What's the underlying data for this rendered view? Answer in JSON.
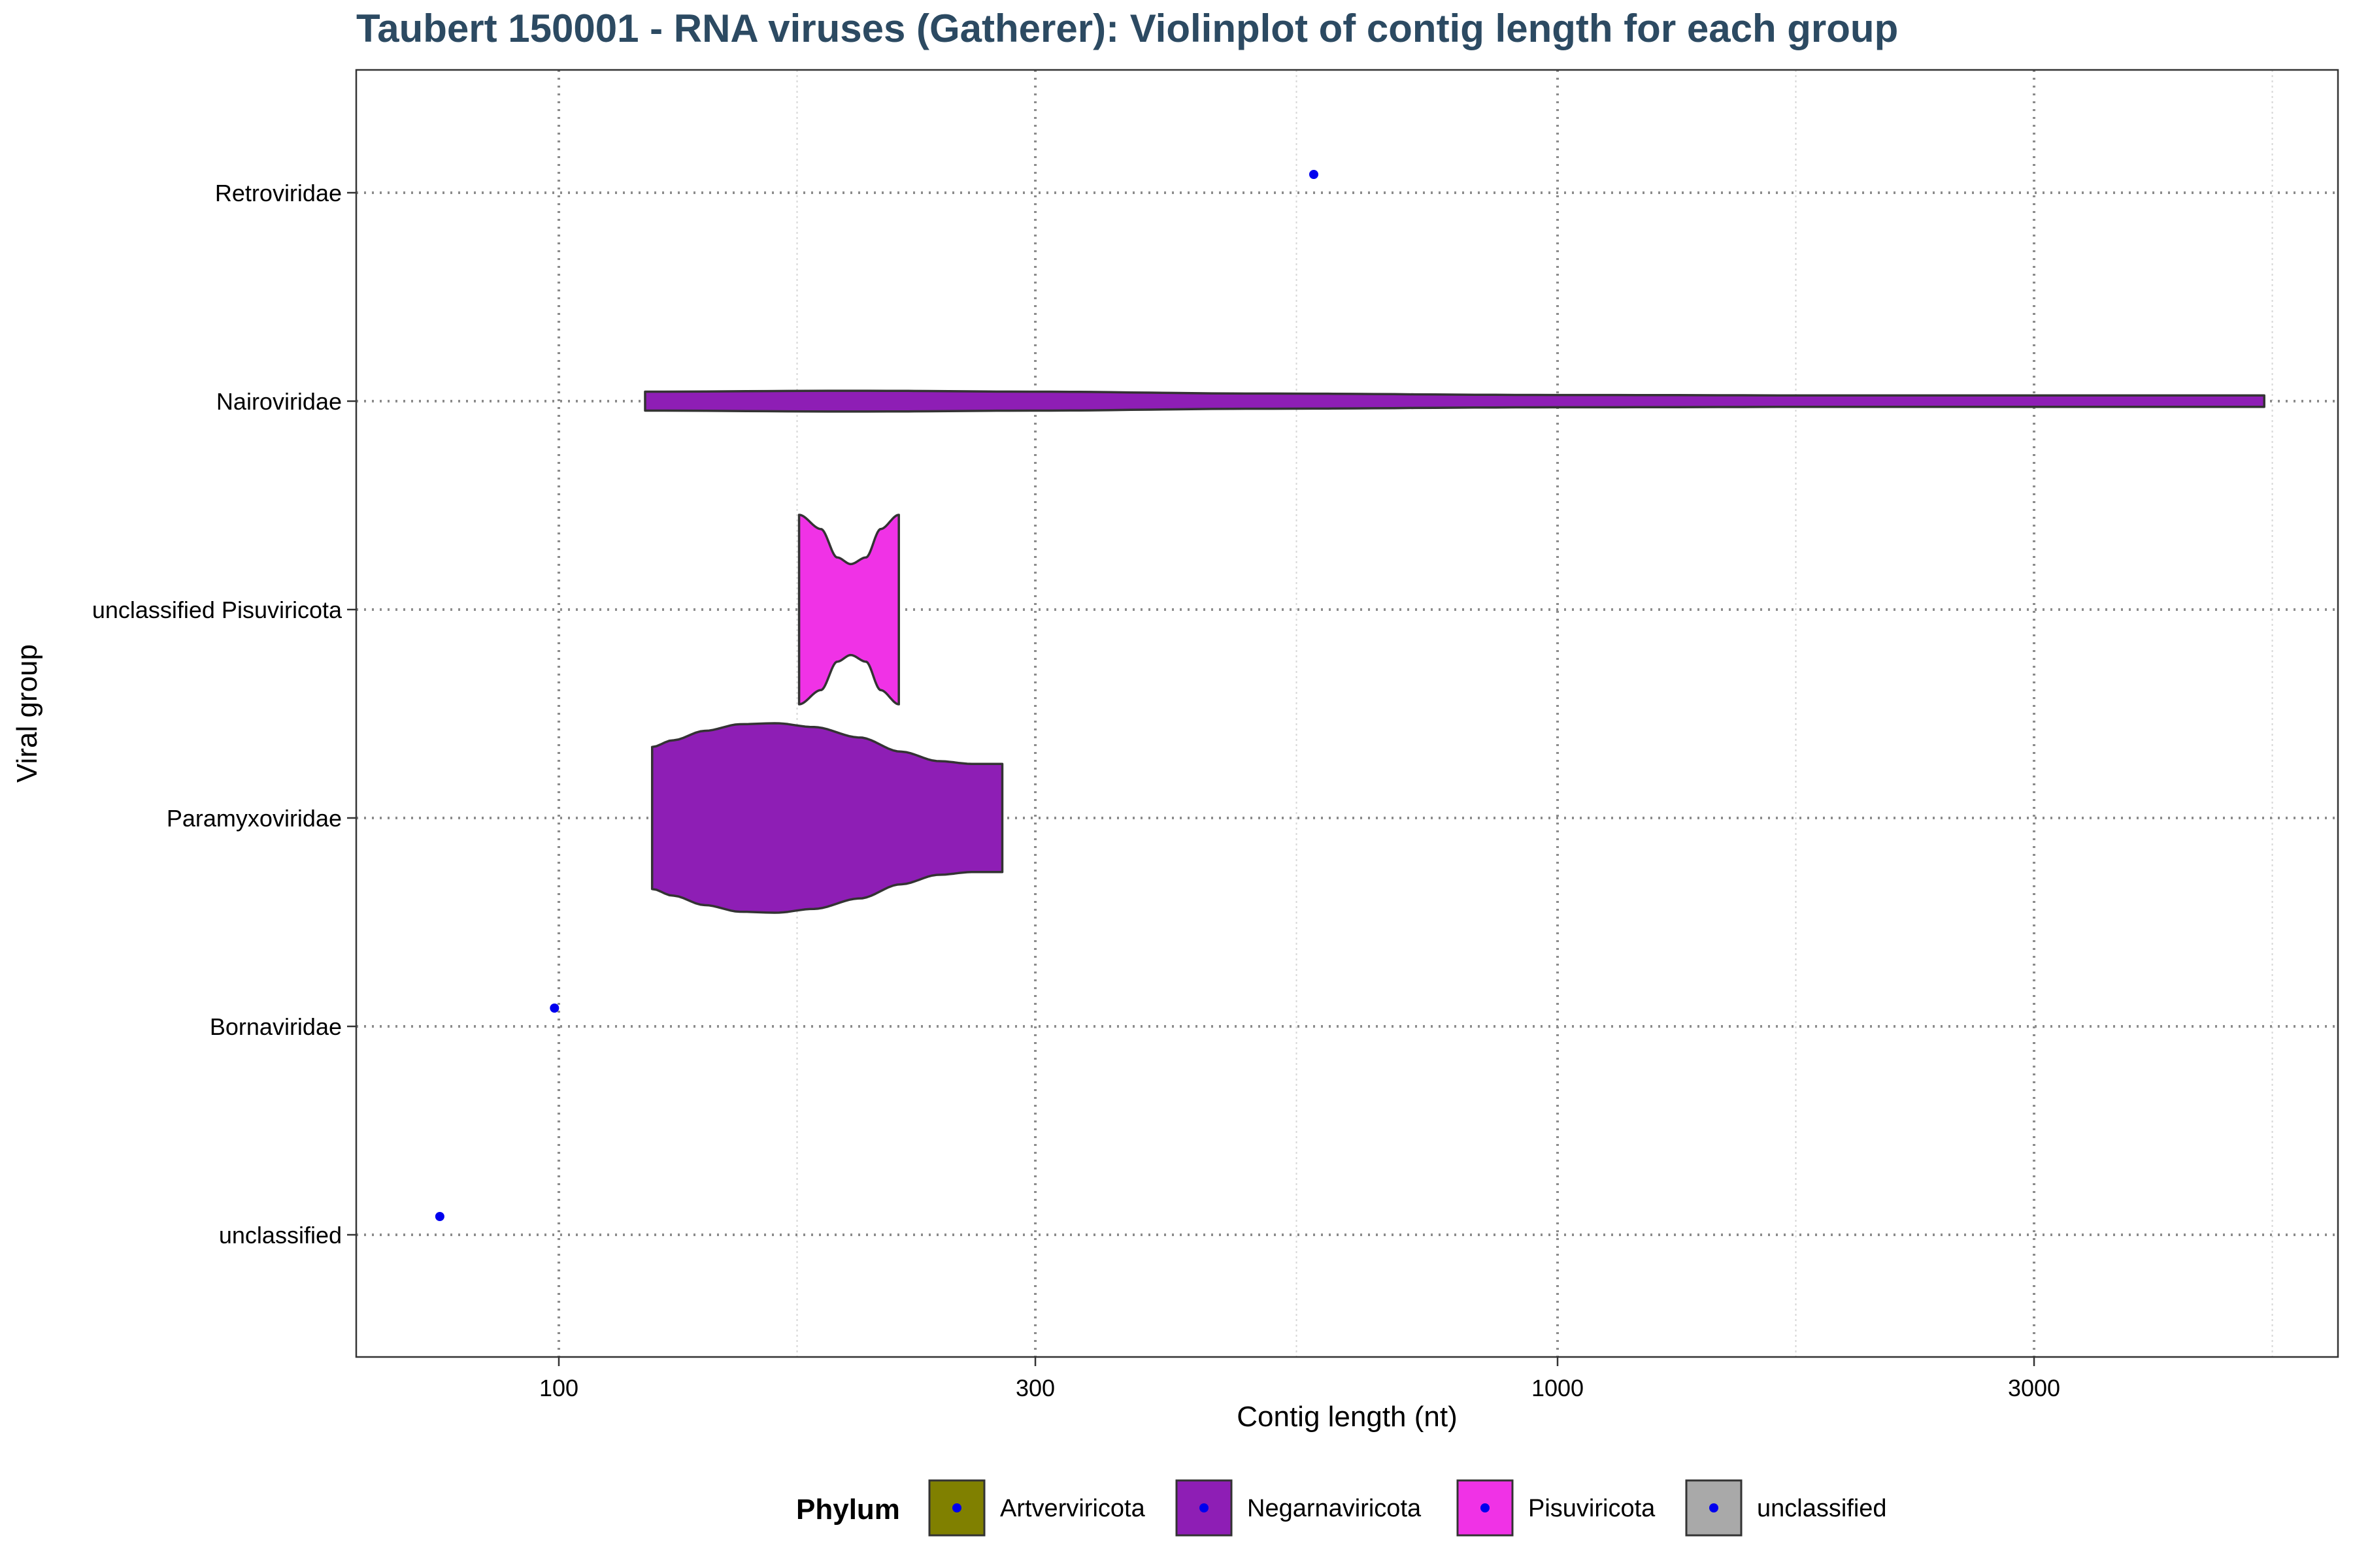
{
  "chart_data": {
    "type": "violin",
    "title": "Taubert 150001 - RNA viruses (Gatherer): Violinplot of contig length for each group",
    "xlabel": "Contig length (nt)",
    "ylabel": "Viral group",
    "x_scale": "log10",
    "xlim": [
      65,
      6000
    ],
    "x_ticks": [
      100,
      300,
      1000,
      3000
    ],
    "x_tick_labels": [
      "100",
      "300",
      "1000",
      "3000"
    ],
    "grid": true,
    "categories": [
      "unclassified",
      "Bornaviridae",
      "Paramyxoviridae",
      "unclassified Pisuviricota",
      "Nairoviridae",
      "Retroviridae"
    ],
    "groups": [
      {
        "name": "unclassified",
        "phylum": "unclassified",
        "points": [
          76
        ]
      },
      {
        "name": "Bornaviridae",
        "phylum": "Negarnaviricota",
        "points": [
          99
        ]
      },
      {
        "name": "Paramyxoviridae",
        "phylum": "Negarnaviricota",
        "violin": {
          "min": 124,
          "max": 278,
          "profile": [
            [
              124,
              0.75
            ],
            [
              130,
              0.82
            ],
            [
              140,
              0.92
            ],
            [
              152,
              0.99
            ],
            [
              165,
              1.0
            ],
            [
              180,
              0.96
            ],
            [
              200,
              0.85
            ],
            [
              220,
              0.7
            ],
            [
              240,
              0.6
            ],
            [
              260,
              0.57
            ],
            [
              278,
              0.57
            ]
          ]
        }
      },
      {
        "name": "unclassified Pisuviricota",
        "phylum": "Pisuviricota",
        "violin": {
          "min": 174,
          "max": 219,
          "profile": [
            [
              174,
              1.0
            ],
            [
              183,
              0.85
            ],
            [
              190,
              0.55
            ],
            [
              196,
              0.48
            ],
            [
              203,
              0.55
            ],
            [
              210,
              0.85
            ],
            [
              219,
              1.0
            ]
          ]
        }
      },
      {
        "name": "Nairoviridae",
        "phylum": "Negarnaviricota",
        "violin": {
          "min": 122,
          "max": 5100,
          "profile": [
            [
              122,
              0.1
            ],
            [
              200,
              0.11
            ],
            [
              300,
              0.1
            ],
            [
              500,
              0.08
            ],
            [
              1000,
              0.065
            ],
            [
              2000,
              0.06
            ],
            [
              5100,
              0.06
            ]
          ]
        }
      },
      {
        "name": "Retroviridae",
        "phylum": "unclassified",
        "points": [
          570
        ]
      }
    ],
    "legend": {
      "title": "Phylum",
      "placement": "bottom",
      "entries": [
        {
          "name": "Artverviricota",
          "fill": "#808000"
        },
        {
          "name": "Negarnaviricota",
          "fill": "#8e1eb5"
        },
        {
          "name": "Pisuviricota",
          "fill": "#f032e6"
        },
        {
          "name": "unclassified",
          "fill": "#a9a9a9"
        }
      ]
    },
    "colors": {
      "point": "#0000ee",
      "outline": "#333333",
      "major_grid": "#8c8c8c",
      "minor_grid": "#d6d6d6",
      "title": "#2c4a62"
    }
  }
}
